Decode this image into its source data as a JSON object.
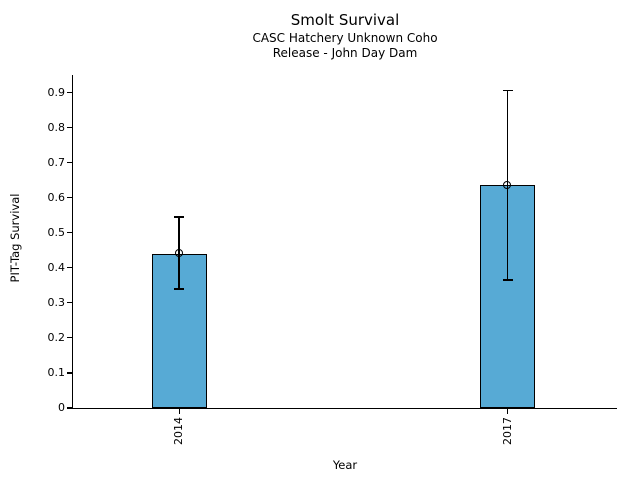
{
  "figure": {
    "background_color": "#ffffff",
    "text_color": "#000000"
  },
  "chart_data": {
    "type": "bar",
    "title": "Smolt Survival",
    "subtitle_lines": [
      "CASC Hatchery Unknown Coho",
      "Release - John Day Dam"
    ],
    "xlabel": "Year",
    "ylabel": "PIT-Tag Survival",
    "categories": [
      "2014",
      "2017"
    ],
    "x": [
      2014,
      2017
    ],
    "values": [
      0.44,
      0.635
    ],
    "error_low": [
      0.34,
      0.365
    ],
    "error_high": [
      0.545,
      0.905
    ],
    "marker": "open-circle",
    "bar_color": "#57AAD5",
    "bar_edge_color": "#000000",
    "error_color": "#000000",
    "bar_width": 0.5,
    "xlim": [
      2013.03,
      2018.0
    ],
    "ylim": [
      0,
      0.95
    ],
    "yticks": [
      0,
      0.1,
      0.2,
      0.3,
      0.4,
      0.5,
      0.6,
      0.7,
      0.8,
      0.9
    ],
    "ytick_labels": [
      "0",
      "0.1",
      "0.2",
      "0.3",
      "0.4",
      "0.5",
      "0.6",
      "0.7",
      "0.8",
      "0.9"
    ],
    "xtick_label_rotation": 90,
    "grid": false,
    "legend": null
  }
}
